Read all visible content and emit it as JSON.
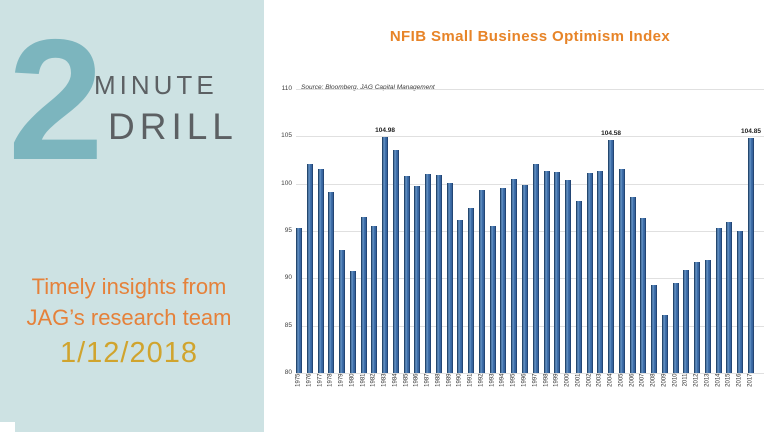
{
  "left_panel": {
    "big_number": "2",
    "word1": "MINUTE",
    "word2": "DRILL",
    "tagline_line1": "Timely insights from",
    "tagline_line2": "JAG’s research team",
    "date": "1/12/2018",
    "colors": {
      "background": "#cde2e3",
      "number": "#7cb5be",
      "words": "#5c6063",
      "tagline": "#e5813a",
      "date": "#d0a42e"
    }
  },
  "chart_data": {
    "type": "bar",
    "title": "NFIB Small Business Optimism Index",
    "title_color": "#e78428",
    "source_note": "Source: Bloomberg, JAG Capital Management",
    "xlabel": "",
    "ylabel": "",
    "ylim": [
      80,
      110
    ],
    "yticks": [
      80,
      85,
      90,
      95,
      100,
      105,
      110
    ],
    "grid": true,
    "legend": false,
    "bar_color": "#3f6fa9",
    "bar_border_color": "#1d3d63",
    "categories": [
      "1975",
      "1976",
      "1977",
      "1978",
      "1979",
      "1980",
      "1981",
      "1982",
      "1983",
      "1984",
      "1985",
      "1986",
      "1987",
      "1988",
      "1989",
      "1990",
      "1991",
      "1992",
      "1993",
      "1994",
      "1995",
      "1996",
      "1997",
      "1998",
      "1999",
      "2000",
      "2001",
      "2002",
      "2003",
      "2004",
      "2005",
      "2006",
      "2007",
      "2008",
      "2009",
      "2010",
      "2011",
      "2012",
      "2013",
      "2014",
      "2015",
      "2016",
      "2017"
    ],
    "values": [
      95.3,
      102.1,
      101.6,
      99.1,
      93.0,
      90.8,
      96.5,
      95.5,
      104.98,
      103.6,
      100.8,
      99.8,
      101.0,
      100.9,
      100.1,
      96.2,
      97.4,
      99.3,
      95.5,
      99.5,
      100.5,
      99.9,
      102.1,
      101.3,
      101.2,
      100.4,
      98.2,
      101.1,
      101.3,
      104.58,
      101.5,
      98.6,
      96.4,
      89.3,
      86.1,
      89.5,
      90.9,
      91.7,
      91.9,
      95.3,
      95.9,
      95.0,
      104.85
    ],
    "data_labels": [
      {
        "category": "1983",
        "label": "104.98"
      },
      {
        "category": "2004",
        "label": "104.58"
      },
      {
        "category": "2017",
        "label": "104.85"
      }
    ]
  }
}
